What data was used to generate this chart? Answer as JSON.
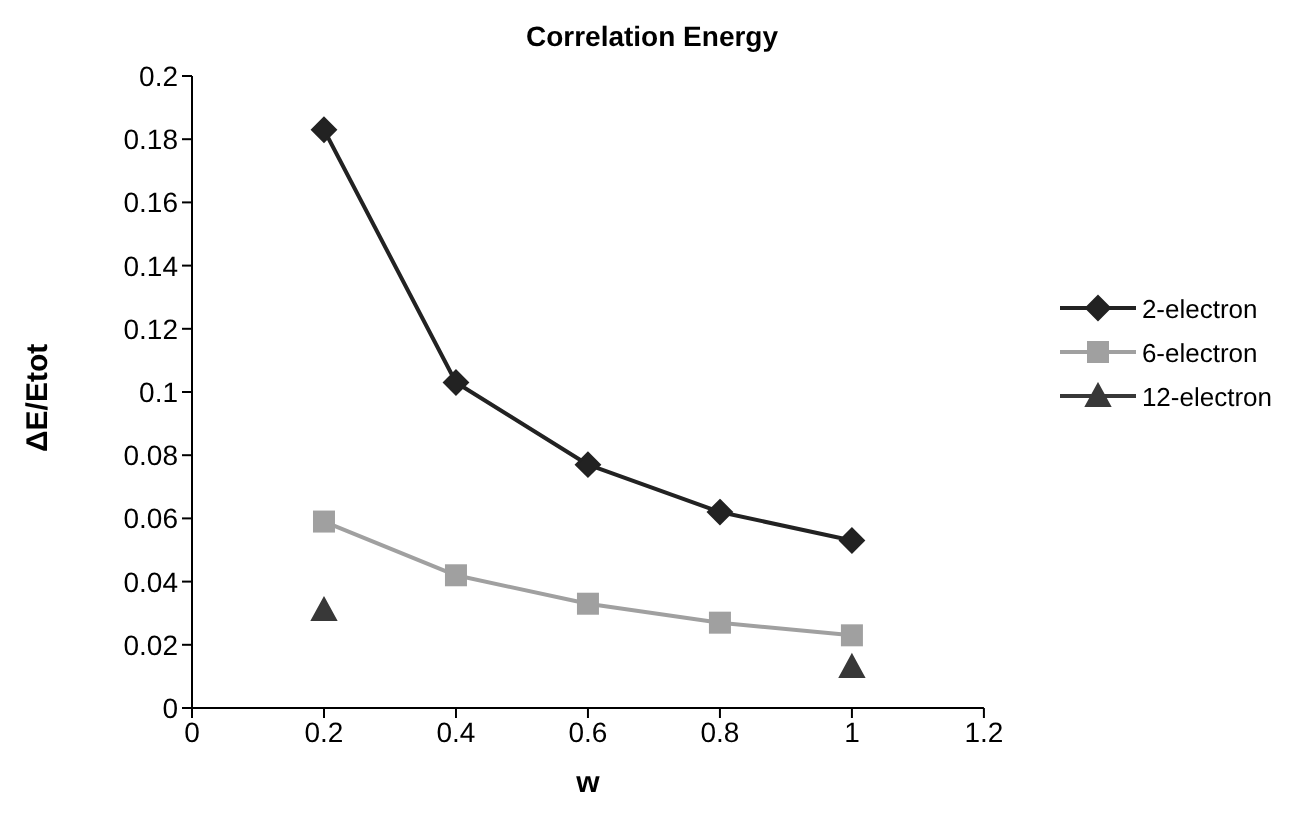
{
  "chart_data": {
    "type": "line",
    "title": "Correlation Energy",
    "xlabel": "w",
    "ylabel": "ΔE/Etot",
    "x": [
      0.2,
      0.4,
      0.6,
      0.8,
      1
    ],
    "series": [
      {
        "name": "2-electron",
        "color": "#222222",
        "marker": "diamond",
        "values": [
          0.183,
          0.103,
          0.077,
          0.062,
          0.053
        ]
      },
      {
        "name": "6-electron",
        "color": "#a0a0a0",
        "marker": "square",
        "values": [
          0.059,
          0.042,
          0.033,
          0.027,
          0.023
        ]
      },
      {
        "name": "12-electron",
        "type": "scatter",
        "color": "#383838",
        "marker": "triangle",
        "values": [
          0.031,
          null,
          null,
          null,
          0.013
        ]
      }
    ],
    "xlim": [
      0,
      1.2
    ],
    "xticks": [
      0,
      0.2,
      0.4,
      0.6,
      0.8,
      1,
      1.2
    ],
    "ylim": [
      0,
      0.2
    ],
    "yticks": [
      0,
      0.02,
      0.04,
      0.06,
      0.08,
      0.1,
      0.12,
      0.14,
      0.16,
      0.18,
      0.2
    ],
    "grid": false,
    "legend": "right"
  }
}
